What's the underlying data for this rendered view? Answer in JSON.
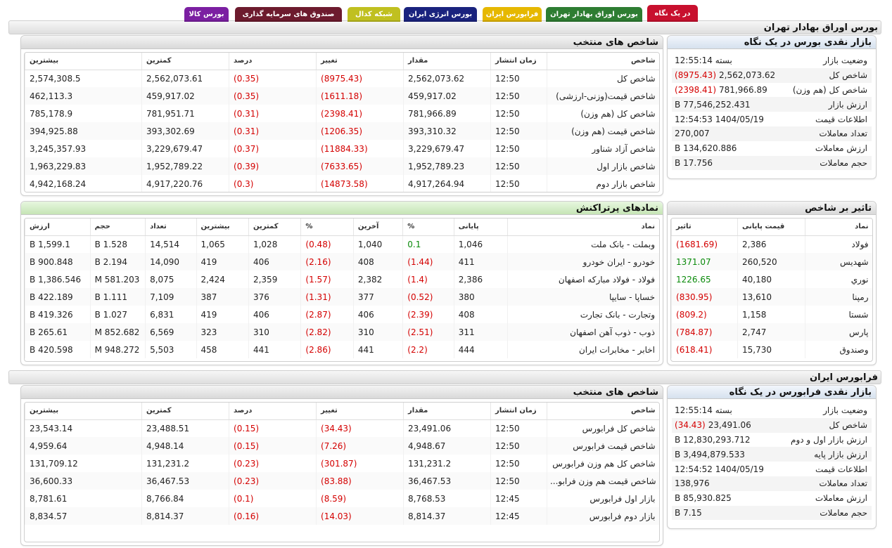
{
  "tabs": [
    {
      "label": "در یک نگاه",
      "color": "#c8102e",
      "fg": "#ffffff"
    },
    {
      "label": "بورس اوراق بهادار تهران",
      "color": "#2e7d32",
      "fg": "#ffffff"
    },
    {
      "label": "فرابورس ایران",
      "color": "#e6b800",
      "fg": "#ffffff"
    },
    {
      "label": "بورس انرژی ایران",
      "color": "#1a237e",
      "fg": "#ffffff"
    },
    {
      "label": "شبکه کدال",
      "color": "#c0c020",
      "fg": "#ffffff"
    },
    {
      "label": "صندوق های سرمایه گذاری",
      "color": "#6d1b2e",
      "fg": "#ffffff"
    },
    {
      "label": "بورس کالا",
      "color": "#7b1fa2",
      "fg": "#ffffff"
    }
  ],
  "tse": {
    "section_title": "بورس اوراق بهادار تهران",
    "selected_indices": {
      "title": "شاخص های منتخب",
      "headers": [
        "شاخص",
        "زمان انتشار",
        "مقدار",
        "تغییر",
        "درصد",
        "کمترین",
        "بیشترین"
      ],
      "rows": [
        [
          "شاخص کل",
          "12:50",
          "2,562,073.62",
          "(8975.43)",
          "(0.35)",
          "2,562,073.61",
          "2,574,308.5"
        ],
        [
          "شاخص قیمت(وزنی-ارزشی)",
          "12:50",
          "459,917.02",
          "(1611.18)",
          "(0.35)",
          "459,917.02",
          "462,113.3"
        ],
        [
          "شاخص کل (هم وزن)",
          "12:50",
          "781,966.89",
          "(2398.41)",
          "(0.31)",
          "781,951.71",
          "785,178.9"
        ],
        [
          "شاخص قیمت (هم وزن)",
          "12:50",
          "393,310.32",
          "(1206.35)",
          "(0.31)",
          "393,302.69",
          "394,925.88"
        ],
        [
          "شاخص آزاد شناور",
          "12:50",
          "3,229,679.47",
          "(11884.33)",
          "(0.37)",
          "3,229,679.47",
          "3,245,357.93"
        ],
        [
          "شاخص بازار اول",
          "12:50",
          "1,952,789.23",
          "(7633.65)",
          "(0.39)",
          "1,952,789.22",
          "1,963,229.83"
        ],
        [
          "شاخص بازار دوم",
          "12:50",
          "4,917,264.94",
          "(14873.58)",
          "(0.3)",
          "4,917,220.76",
          "4,942,168.24"
        ]
      ]
    },
    "overview": {
      "title": "بازار نقدی بورس در یک نگاه",
      "rows": [
        {
          "label": "وضعیت بازار",
          "value": "بسته 12:55:14",
          "change": ""
        },
        {
          "label": "شاخص کل",
          "value": "2,562,073.62",
          "change": "(8975.43)"
        },
        {
          "label": "شاخص کل (هم وزن)",
          "value": "781,966.89",
          "change": "(2398.41)"
        },
        {
          "label": "ارزش بازار",
          "value": "77,546,252.431 B",
          "change": ""
        },
        {
          "label": "اطلاعات قیمت",
          "value": "1404/05/19 12:54:53",
          "change": ""
        },
        {
          "label": "تعداد معاملات",
          "value": "270,007",
          "change": ""
        },
        {
          "label": "ارزش معاملات",
          "value": "134,620.886 B",
          "change": ""
        },
        {
          "label": "حجم معاملات",
          "value": "17.756 B",
          "change": ""
        }
      ]
    },
    "top_traded": {
      "title": "نمادهای پرتراکنش",
      "headers": [
        "نماد",
        "پایانی",
        "%",
        "آخرین",
        "%",
        "کمترین",
        "بیشترین",
        "تعداد",
        "حجم",
        "ارزش"
      ],
      "rows": [
        [
          "وبملت - بانک ملت",
          "1,046",
          "0.1",
          "1,040",
          "(0.48)",
          "1,028",
          "1,065",
          "14,514",
          "1.528 B",
          "1,599.1 B"
        ],
        [
          "خودرو - ایران خودرو",
          "411",
          "(1.44)",
          "408",
          "(2.16)",
          "406",
          "419",
          "14,090",
          "2.194 B",
          "900.848 B"
        ],
        [
          "فولاد - فولاد مبارکه اصفهان",
          "2,386",
          "(1.4)",
          "2,382",
          "(1.57)",
          "2,359",
          "2,424",
          "8,075",
          "581.203 M",
          "1,386.546 B"
        ],
        [
          "خساپا - سایپا",
          "380",
          "(0.52)",
          "377",
          "(1.31)",
          "376",
          "387",
          "7,109",
          "1.111 B",
          "422.189 B"
        ],
        [
          "وتجارت - بانک تجارت",
          "408",
          "(2.39)",
          "406",
          "(2.87)",
          "406",
          "419",
          "6,831",
          "1.027 B",
          "419.326 B"
        ],
        [
          "ذوب - ذوب آهن اصفهان",
          "311",
          "(2.51)",
          "310",
          "(2.82)",
          "310",
          "323",
          "6,569",
          "852.682 M",
          "265.61 B"
        ],
        [
          "اخابر - مخابرات ایران",
          "444",
          "(2.2)",
          "441",
          "(2.86)",
          "441",
          "458",
          "5,503",
          "948.272 M",
          "420.598 B"
        ]
      ]
    },
    "impact": {
      "title": "تاثیر بر شاخص",
      "headers": [
        "نماد",
        "قیمت پایانی",
        "تاثیر"
      ],
      "rows": [
        [
          "فولاد",
          "2,386",
          "(1681.69)"
        ],
        [
          "شهديس",
          "260,520",
          "1371.07"
        ],
        [
          "نوري",
          "40,180",
          "1226.65"
        ],
        [
          "رمپنا",
          "13,610",
          "(830.95)"
        ],
        [
          "شستا",
          "1,158",
          "(809.2)"
        ],
        [
          "پارس",
          "2,747",
          "(784.87)"
        ],
        [
          "وصندوق",
          "15,730",
          "(618.41)"
        ]
      ]
    }
  },
  "ifb": {
    "section_title": "فرابورس ایران",
    "selected_indices": {
      "title": "شاخص های منتخب",
      "headers": [
        "شاخص",
        "زمان انتشار",
        "مقدار",
        "تغییر",
        "درصد",
        "کمترین",
        "بیشترین"
      ],
      "rows": [
        [
          "شاخص کل فرابورس",
          "12:50",
          "23,491.06",
          "(34.43)",
          "(0.15)",
          "23,488.51",
          "23,543.14"
        ],
        [
          "شاخص قیمت فرابورس",
          "12:50",
          "4,948.67",
          "(7.26)",
          "(0.15)",
          "4,948.14",
          "4,959.64"
        ],
        [
          "شاخص کل هم وزن فرابورس",
          "12:50",
          "131,231.2",
          "(301.87)",
          "(0.23)",
          "131,231.2",
          "131,709.12"
        ],
        [
          "شاخص قیمت هم وزن فرابو...",
          "12:50",
          "36,467.53",
          "(83.88)",
          "(0.23)",
          "36,467.53",
          "36,600.33"
        ],
        [
          "بازار اول فرابورس",
          "12:45",
          "8,768.53",
          "(8.59)",
          "(0.1)",
          "8,766.84",
          "8,781.61"
        ],
        [
          "بازار دوم فرابورس",
          "12:45",
          "8,814.37",
          "(14.03)",
          "(0.16)",
          "8,814.37",
          "8,834.57"
        ]
      ]
    },
    "overview": {
      "title": "بازار نقدی فرابورس در یک نگاه",
      "rows": [
        {
          "label": "وضعیت بازار",
          "value": "بسته 12:55:14",
          "change": ""
        },
        {
          "label": "شاخص کل",
          "value": "23,491.06",
          "change": "(34.43)"
        },
        {
          "label": "ارزش بازار اول و دوم",
          "value": "12,830,293.712 B",
          "change": ""
        },
        {
          "label": "ارزش بازار پایه",
          "value": "3,494,879.533 B",
          "change": ""
        },
        {
          "label": "اطلاعات قیمت",
          "value": "1404/05/19 12:54:52",
          "change": ""
        },
        {
          "label": "تعداد معاملات",
          "value": "138,976",
          "change": ""
        },
        {
          "label": "ارزش معاملات",
          "value": "85,930.825 B",
          "change": ""
        },
        {
          "label": "حجم معاملات",
          "value": "7.15 B",
          "change": ""
        }
      ]
    }
  }
}
